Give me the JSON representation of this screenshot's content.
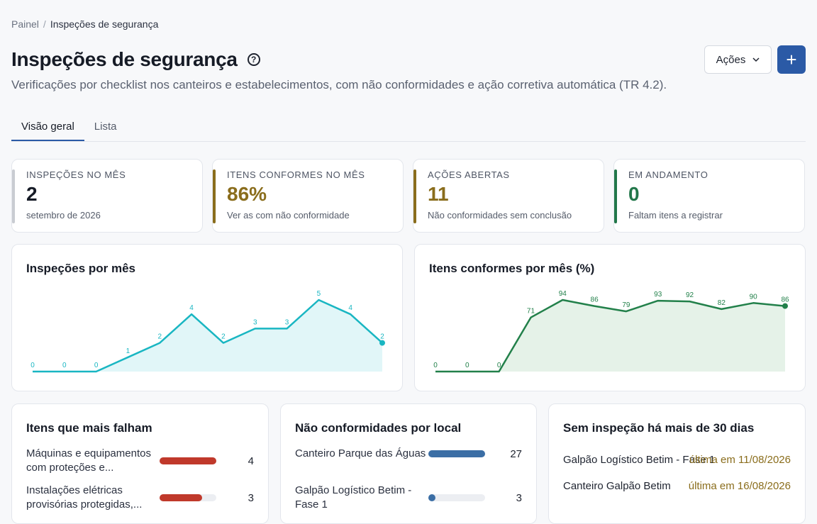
{
  "breadcrumb": {
    "root": "Painel",
    "separator": "/",
    "current": "Inspeções de segurança"
  },
  "header": {
    "title": "Inspeções de segurança",
    "help_icon": "question-circle-icon",
    "subtitle": "Verificações por checklist nos canteiros e estabelecimentos, com não conformidades e ação corretiva automática (TR 4.2).",
    "actions_label": "Ações",
    "add_label": "+"
  },
  "tabs": [
    {
      "label": "Visão geral",
      "active": true
    },
    {
      "label": "Lista",
      "active": false
    }
  ],
  "kpis": [
    {
      "label": "INSPEÇÕES NO MÊS",
      "value": "2",
      "note": "setembro de 2026",
      "color": "#c9ccd2"
    },
    {
      "label": "ITENS CONFORMES NO MÊS",
      "value": "86%",
      "note": "Ver as com não conformidade",
      "color": "#8a6d1c"
    },
    {
      "label": "AÇÕES ABERTAS",
      "value": "11",
      "note": "Não conformidades sem conclusão",
      "color": "#8a6d1c"
    },
    {
      "label": "EM ANDAMENTO",
      "value": "0",
      "note": "Faltam itens a registrar",
      "color": "#22774a"
    }
  ],
  "chart_data": [
    {
      "type": "area",
      "title": "Inspeções por mês",
      "values": [
        0,
        0,
        0,
        1,
        2,
        4,
        2,
        3,
        3,
        5,
        4,
        2
      ],
      "ylim": [
        0,
        5
      ],
      "color": "#19b6c2",
      "fill": "#e1f6f8"
    },
    {
      "type": "area",
      "title": "Itens conformes por mês (%)",
      "values": [
        0,
        0,
        0,
        71,
        94,
        86,
        79,
        93,
        92,
        82,
        90,
        86
      ],
      "ylim": [
        0,
        94
      ],
      "color": "#22804a",
      "fill": "#e5f2e8"
    }
  ],
  "failing_items": {
    "title": "Itens que mais falham",
    "items": [
      {
        "label": "Máquinas e equipamentos com proteções e...",
        "value": "4",
        "fraction": 1.0
      },
      {
        "label": "Instalações elétricas provisórias protegidas,...",
        "value": "3",
        "fraction": 0.75
      }
    ],
    "color": "#c0392b"
  },
  "by_location": {
    "title": "Não conformidades por local",
    "items": [
      {
        "label": "Canteiro Parque das Águas",
        "value": "27",
        "fraction": 1.0
      },
      {
        "label": "Galpão Logístico Betim - Fase 1",
        "value": "3",
        "fraction": 0.11
      }
    ],
    "color": "#3b6ea5"
  },
  "stale": {
    "title": "Sem inspeção há mais de 30 dias",
    "items": [
      {
        "name": "Galpão Logístico Betim - Fase 1",
        "date": "última em 11/08/2026"
      },
      {
        "name": "Canteiro Galpão Betim",
        "date": "última em 16/08/2026"
      }
    ]
  }
}
